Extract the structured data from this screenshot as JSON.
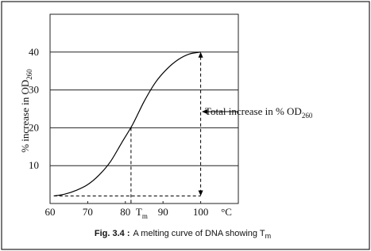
{
  "chart_data": {
    "type": "line",
    "y_label": {
      "text": "% increase in OD",
      "sub": "260"
    },
    "x": [
      61,
      64,
      67,
      70,
      73,
      76,
      79,
      82,
      85,
      88,
      91,
      94,
      97,
      100
    ],
    "values": [
      2,
      2.5,
      3.5,
      5,
      7.5,
      11,
      16,
      21,
      27,
      32,
      35.5,
      38,
      39.5,
      40
    ],
    "color": "#000000",
    "xlim": [
      60,
      110
    ],
    "xticks": [
      60,
      70,
      80,
      90,
      100
    ],
    "x_unit": "°C",
    "ylim": [
      0,
      50
    ],
    "yticks": [
      10,
      20,
      30,
      40
    ],
    "grid": true,
    "tm": {
      "value": 81.5,
      "y": 20,
      "label": "T",
      "sub": "m"
    },
    "annotation": {
      "text": "Total increase in % OD",
      "sub": "260"
    },
    "caption": {
      "label": "Fig. 3.4 :",
      "text": "A melting curve of DNA showing T",
      "sub": "m"
    }
  }
}
